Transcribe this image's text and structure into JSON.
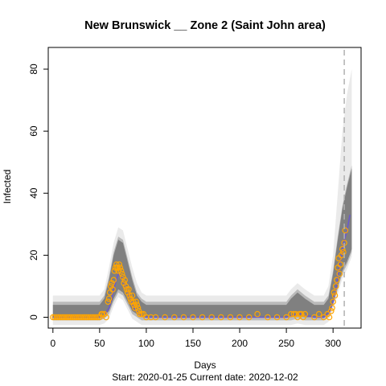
{
  "chart_data": {
    "type": "scatter",
    "title": "New Brunswick __ Zone 2 (Saint John area)",
    "xlabel": "Days",
    "ylabel": "Infected",
    "footer": "Start:  2020-01-25   Current date:  2020-12-02",
    "xlim": [
      -5,
      330
    ],
    "ylim": [
      -3.5,
      87
    ],
    "x_ticks": [
      0,
      50,
      100,
      150,
      200,
      250,
      300
    ],
    "y_ticks": [
      0,
      20,
      40,
      60,
      80
    ],
    "current_day": 312,
    "colors": {
      "ensemble": "#808080",
      "ensemble_faint": "#dcdcdc",
      "median_line": "#6a5acd",
      "observed": "#ffa500",
      "current_line": "#b0b0b0"
    },
    "ensemble_band": {
      "x": [
        0,
        50,
        55,
        60,
        65,
        70,
        75,
        80,
        85,
        90,
        95,
        100,
        105,
        150,
        200,
        250,
        255,
        262,
        270,
        280,
        290,
        295,
        300,
        305,
        310,
        315,
        320
      ],
      "lower": [
        0,
        0,
        0.5,
        2,
        6,
        9,
        8,
        5,
        2,
        1,
        0,
        0,
        0,
        0,
        0,
        0,
        0,
        0.5,
        0,
        0,
        0,
        1,
        5,
        10,
        15,
        18,
        22
      ],
      "upper": [
        4,
        4,
        6,
        12,
        20,
        25,
        24,
        18,
        12,
        7,
        5,
        4,
        4,
        4,
        4,
        4,
        6,
        8,
        6,
        4,
        4,
        6,
        14,
        25,
        35,
        42,
        48
      ],
      "faint_upper": [
        7,
        7,
        9,
        16,
        24,
        29,
        28,
        22,
        16,
        11,
        8,
        7,
        7,
        7,
        7,
        7,
        9,
        11,
        9,
        7,
        7,
        10,
        20,
        40,
        60,
        72,
        80
      ]
    },
    "median": {
      "x": [
        0,
        50,
        55,
        60,
        63,
        66,
        70,
        73,
        76,
        80,
        84,
        88,
        92,
        96,
        100,
        105,
        150,
        200,
        250,
        260,
        265,
        270,
        280,
        290,
        296,
        300,
        303,
        306,
        309,
        312,
        315,
        318
      ],
      "y": [
        0,
        0,
        0.5,
        3,
        6,
        10,
        14,
        13,
        11,
        8,
        5,
        2.5,
        1,
        0.3,
        0,
        0,
        0,
        0,
        0,
        0.8,
        1.2,
        0.6,
        0,
        0,
        1.5,
        5,
        9,
        15,
        20,
        25,
        28,
        33
      ]
    },
    "observed": {
      "x": [
        0,
        2,
        4,
        6,
        8,
        10,
        12,
        14,
        16,
        18,
        20,
        22,
        24,
        26,
        28,
        30,
        32,
        34,
        36,
        38,
        40,
        42,
        44,
        46,
        48,
        50,
        52,
        53,
        55,
        57,
        59,
        60,
        61,
        62,
        63,
        64,
        65,
        66,
        67,
        68,
        69,
        70,
        71,
        72,
        73,
        74,
        75,
        76,
        77,
        78,
        79,
        80,
        81,
        82,
        83,
        84,
        85,
        86,
        87,
        88,
        89,
        90,
        91,
        92,
        93,
        95,
        97,
        100,
        105,
        110,
        120,
        130,
        140,
        150,
        160,
        170,
        180,
        190,
        200,
        210,
        219,
        230,
        240,
        250,
        255,
        258,
        260,
        262,
        264,
        266,
        268,
        270,
        280,
        285,
        290,
        294,
        296,
        298,
        299,
        300,
        301,
        302,
        303,
        304,
        305,
        306,
        307,
        308,
        309,
        310,
        311,
        312,
        313
      ],
      "y": [
        0,
        0,
        0,
        0,
        0,
        0,
        0,
        0,
        0,
        0,
        0,
        0,
        0,
        0,
        0,
        0,
        0,
        0,
        0,
        0,
        0,
        0,
        0,
        0,
        0,
        0,
        1,
        1,
        1,
        0,
        5,
        6,
        8,
        10,
        11,
        9,
        12,
        15,
        16,
        17,
        16,
        15,
        17,
        16,
        15,
        14,
        13,
        11,
        12,
        10,
        9,
        8,
        9,
        7,
        6,
        5,
        7,
        5,
        4,
        3,
        5,
        4,
        3,
        2,
        1,
        1,
        1,
        0,
        0,
        0,
        0,
        0,
        0,
        0,
        0,
        0,
        0,
        0,
        0,
        0,
        1,
        0,
        0,
        0,
        1,
        1,
        1,
        0,
        1,
        1,
        0,
        1,
        0,
        1,
        0,
        1,
        0,
        2,
        3,
        5,
        8,
        7,
        10,
        12,
        16,
        19,
        14,
        17,
        20,
        22,
        21,
        24,
        28
      ]
    }
  }
}
